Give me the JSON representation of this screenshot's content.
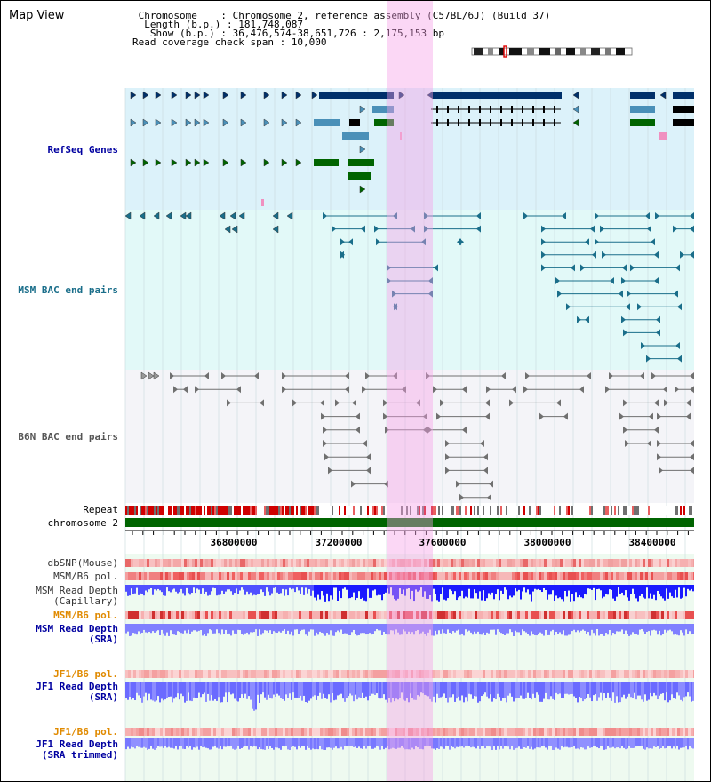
{
  "header": {
    "title": "Map View",
    "chromosome_line": " Chromosome    : Chromosome 2, reference assembly (C57BL/6J) (Build 37)",
    "length_line": "  Length (b.p.) : 181,748,087",
    "show_line": "   Show (b.p.) : 36,476,574-38,651,726 : 2,175,153 bp",
    "coverage_line": "Read coverage check span : 10,000"
  },
  "tracks": {
    "refseq": "RefSeq Genes",
    "msm_bac": "MSM BAC end pairs",
    "b6n_bac": "B6N BAC end pairs",
    "repeat": "Repeat",
    "chromosome": "chromosome 2",
    "dbsnp": "dbSNP(Mouse)",
    "msm_b6_pol_1": "MSM/B6 pol.",
    "msm_read_depth_cap_1": "MSM Read Depth",
    "msm_read_depth_cap_2": "(Capillary)",
    "msm_b6_pol_2": "MSM/B6 pol.",
    "msm_read_depth_sra_1": "MSM Read Depth",
    "msm_read_depth_sra_2": "(SRA)",
    "jf1_b6_pol_1": "JF1/B6 pol.",
    "jf1_read_depth_sra_1": "JF1 Read Depth",
    "jf1_read_depth_sra_2": "(SRA)",
    "jf1_b6_pol_2": "JF1/B6 pol.",
    "jf1_read_depth_trim_1": "JF1 Read Depth",
    "jf1_read_depth_trim_2": "(SRA trimmed)"
  },
  "ruler": {
    "ticks": [
      "36800000",
      "37200000",
      "37600000",
      "38000000",
      "38400000"
    ]
  },
  "colors": {
    "refseq_bg": "#dcf2fa",
    "msm_bg": "#e2f9f8",
    "b6n_bg": "#f4f4f8",
    "lower_bg": "#eefaf0",
    "navy": "#00306a",
    "steel": "#4a90b8",
    "green": "#006400",
    "teal": "#1a6e8a",
    "gray": "#707070",
    "orange": "#e08a00",
    "blue_label": "#0000a0",
    "depth_blue": "#1a1aff",
    "depth_light": "#8080ff"
  }
}
